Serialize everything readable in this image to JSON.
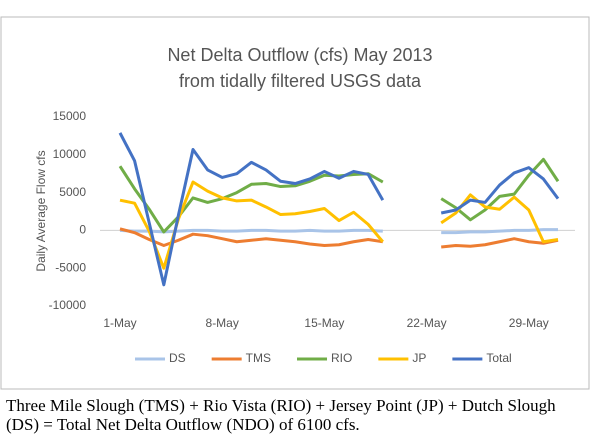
{
  "chart_data": {
    "type": "line",
    "title": [
      "Net Delta Outflow (cfs) May 2013",
      "from tidally filtered USGS data"
    ],
    "y_label": "Daily Average Flow cfs",
    "categories": [
      "1-May",
      null,
      null,
      null,
      null,
      null,
      null,
      "8-May",
      null,
      null,
      null,
      null,
      null,
      null,
      "15-May",
      null,
      null,
      null,
      null,
      null,
      null,
      "22-May",
      null,
      null,
      null,
      null,
      null,
      null,
      "29-May",
      null,
      null
    ],
    "ylim": [
      -10000,
      15000
    ],
    "yticks": [
      -10000,
      -5000,
      0,
      5000,
      10000,
      15000
    ],
    "legend": "bottom",
    "series": [
      {
        "name": "DS",
        "color": "#a9c4e8",
        "values": [
          0,
          -100,
          -100,
          -200,
          -100,
          0,
          0,
          -100,
          -100,
          0,
          0,
          -100,
          -100,
          0,
          -100,
          -100,
          0,
          0,
          -100,
          null,
          null,
          null,
          -300,
          -300,
          -200,
          -200,
          -100,
          0,
          0,
          100,
          100
        ]
      },
      {
        "name": "TMS",
        "color": "#ed7d31",
        "values": [
          200,
          -300,
          -1200,
          -2000,
          -1300,
          -500,
          -700,
          -1100,
          -1500,
          -1300,
          -1100,
          -1300,
          -1500,
          -1800,
          -2000,
          -1900,
          -1500,
          -1200,
          -1500,
          null,
          null,
          null,
          -2200,
          -2000,
          -2100,
          -1900,
          -1500,
          -1100,
          -1500,
          -1700,
          -1300
        ]
      },
      {
        "name": "RIO",
        "color": "#70ad47",
        "values": [
          8500,
          5500,
          2800,
          -200,
          1800,
          4300,
          3700,
          4200,
          5000,
          6100,
          6200,
          5800,
          5900,
          6500,
          7300,
          7200,
          7400,
          7500,
          6400,
          null,
          null,
          null,
          4200,
          3000,
          1400,
          2700,
          4500,
          4800,
          7300,
          9400,
          6500
        ]
      },
      {
        "name": "JP",
        "color": "#ffc000",
        "values": [
          4000,
          3600,
          -100,
          -5000,
          1500,
          6400,
          5200,
          4300,
          3900,
          4000,
          3100,
          2100,
          2200,
          2500,
          2900,
          1300,
          2400,
          800,
          -1500,
          null,
          null,
          null,
          1000,
          2300,
          4700,
          3100,
          2800,
          4400,
          2700,
          -1500,
          -1200
        ]
      },
      {
        "name": "Total",
        "color": "#4472c4",
        "values": [
          12900,
          9200,
          1000,
          -7200,
          2000,
          10700,
          8000,
          7000,
          7500,
          9000,
          8000,
          6500,
          6200,
          6800,
          7800,
          6900,
          7800,
          7400,
          4000,
          null,
          null,
          null,
          2300,
          2700,
          4000,
          3700,
          6000,
          7600,
          8300,
          6800,
          4200
        ]
      }
    ]
  },
  "footnote": "Three Mile Slough (TMS) + Rio Vista (RIO) + Jersey Point (JP) + Dutch Slough (DS) = Total Net Delta Outflow (NDO) of 6100 cfs."
}
